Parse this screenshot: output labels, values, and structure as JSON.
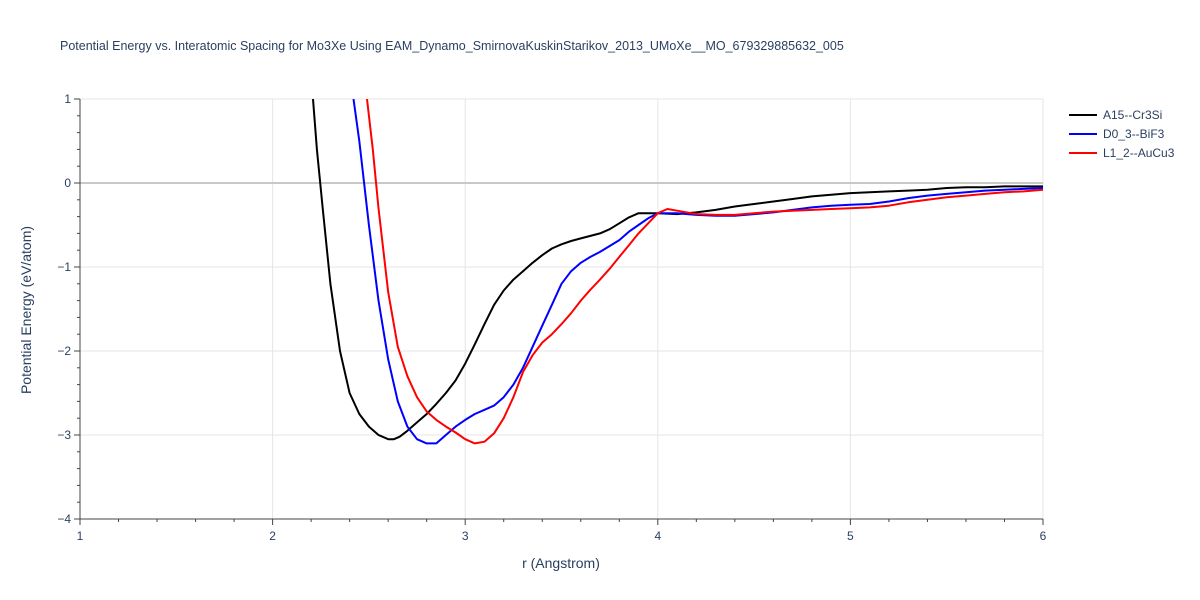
{
  "chart_data": {
    "type": "line",
    "title": "Potential Energy vs. Interatomic Spacing for Mo3Xe Using EAM_Dynamo_SmirnovaKuskinStarikov_2013_UMoXe__MO_679329885632_005",
    "xlabel": "r (Angstrom)",
    "ylabel": "Potential Energy (eV/atom)",
    "xlim": [
      1,
      6
    ],
    "ylim": [
      -4,
      1
    ],
    "xticks": [
      1,
      2,
      3,
      4,
      5,
      6
    ],
    "yticks": [
      1,
      0,
      -1,
      -2,
      -3,
      -4
    ],
    "ytick_labels": [
      "1",
      "0",
      "−1",
      "−2",
      "−3",
      "−4"
    ],
    "grid": true,
    "legend_position": "top-right",
    "series": [
      {
        "name": "A15--Cr3Si",
        "color": "#000000",
        "x": [
          2.21,
          2.23,
          2.26,
          2.3,
          2.35,
          2.4,
          2.45,
          2.5,
          2.55,
          2.6,
          2.63,
          2.66,
          2.7,
          2.75,
          2.8,
          2.85,
          2.9,
          2.95,
          3.0,
          3.05,
          3.1,
          3.15,
          3.2,
          3.25,
          3.3,
          3.35,
          3.4,
          3.45,
          3.5,
          3.55,
          3.6,
          3.65,
          3.7,
          3.75,
          3.8,
          3.85,
          3.9,
          4.0,
          4.1,
          4.2,
          4.3,
          4.4,
          4.5,
          4.6,
          4.7,
          4.8,
          4.9,
          5.0,
          5.1,
          5.2,
          5.3,
          5.4,
          5.5,
          5.6,
          5.7,
          5.8,
          5.9,
          6.0
        ],
        "y": [
          1.0,
          0.4,
          -0.3,
          -1.2,
          -2.0,
          -2.5,
          -2.75,
          -2.9,
          -3.0,
          -3.05,
          -3.05,
          -3.02,
          -2.95,
          -2.85,
          -2.75,
          -2.63,
          -2.5,
          -2.35,
          -2.15,
          -1.92,
          -1.68,
          -1.45,
          -1.28,
          -1.15,
          -1.05,
          -0.95,
          -0.86,
          -0.78,
          -0.73,
          -0.69,
          -0.66,
          -0.63,
          -0.6,
          -0.55,
          -0.48,
          -0.41,
          -0.36,
          -0.36,
          -0.37,
          -0.35,
          -0.32,
          -0.28,
          -0.25,
          -0.22,
          -0.19,
          -0.16,
          -0.14,
          -0.12,
          -0.11,
          -0.1,
          -0.09,
          -0.08,
          -0.06,
          -0.05,
          -0.05,
          -0.04,
          -0.04,
          -0.04
        ]
      },
      {
        "name": "D0_3--BiF3",
        "color": "#0000ff",
        "x": [
          2.42,
          2.45,
          2.5,
          2.55,
          2.6,
          2.65,
          2.7,
          2.75,
          2.8,
          2.85,
          2.9,
          2.95,
          3.0,
          3.05,
          3.1,
          3.15,
          3.2,
          3.25,
          3.3,
          3.35,
          3.4,
          3.45,
          3.5,
          3.55,
          3.6,
          3.65,
          3.7,
          3.75,
          3.8,
          3.85,
          3.9,
          3.95,
          4.0,
          4.1,
          4.2,
          4.3,
          4.4,
          4.5,
          4.6,
          4.7,
          4.8,
          4.9,
          5.0,
          5.1,
          5.2,
          5.3,
          5.4,
          5.5,
          5.6,
          5.7,
          5.8,
          5.9,
          6.0
        ],
        "y": [
          1.0,
          0.5,
          -0.5,
          -1.4,
          -2.1,
          -2.6,
          -2.9,
          -3.05,
          -3.1,
          -3.1,
          -3.0,
          -2.9,
          -2.82,
          -2.75,
          -2.7,
          -2.65,
          -2.55,
          -2.4,
          -2.2,
          -1.95,
          -1.7,
          -1.45,
          -1.2,
          -1.05,
          -0.95,
          -0.88,
          -0.82,
          -0.75,
          -0.68,
          -0.58,
          -0.5,
          -0.42,
          -0.36,
          -0.36,
          -0.38,
          -0.39,
          -0.39,
          -0.37,
          -0.35,
          -0.32,
          -0.29,
          -0.27,
          -0.26,
          -0.25,
          -0.22,
          -0.18,
          -0.15,
          -0.13,
          -0.11,
          -0.09,
          -0.08,
          -0.07,
          -0.06
        ]
      },
      {
        "name": "L1_2--AuCu3",
        "color": "#ff0000",
        "x": [
          2.49,
          2.52,
          2.55,
          2.6,
          2.65,
          2.7,
          2.75,
          2.8,
          2.85,
          2.9,
          2.95,
          3.0,
          3.05,
          3.1,
          3.15,
          3.2,
          3.25,
          3.3,
          3.35,
          3.4,
          3.45,
          3.5,
          3.55,
          3.6,
          3.65,
          3.7,
          3.75,
          3.8,
          3.85,
          3.9,
          3.95,
          4.0,
          4.05,
          4.1,
          4.2,
          4.3,
          4.4,
          4.5,
          4.6,
          4.7,
          4.8,
          4.9,
          5.0,
          5.1,
          5.2,
          5.3,
          5.4,
          5.5,
          5.6,
          5.7,
          5.8,
          5.9,
          6.0
        ],
        "y": [
          1.0,
          0.4,
          -0.3,
          -1.3,
          -1.95,
          -2.3,
          -2.55,
          -2.72,
          -2.82,
          -2.9,
          -2.97,
          -3.05,
          -3.1,
          -3.08,
          -2.98,
          -2.8,
          -2.55,
          -2.25,
          -2.05,
          -1.9,
          -1.8,
          -1.68,
          -1.55,
          -1.4,
          -1.27,
          -1.15,
          -1.02,
          -0.88,
          -0.74,
          -0.6,
          -0.48,
          -0.36,
          -0.31,
          -0.33,
          -0.37,
          -0.38,
          -0.38,
          -0.36,
          -0.34,
          -0.33,
          -0.32,
          -0.31,
          -0.3,
          -0.29,
          -0.27,
          -0.23,
          -0.2,
          -0.17,
          -0.15,
          -0.13,
          -0.11,
          -0.1,
          -0.08
        ]
      }
    ]
  }
}
